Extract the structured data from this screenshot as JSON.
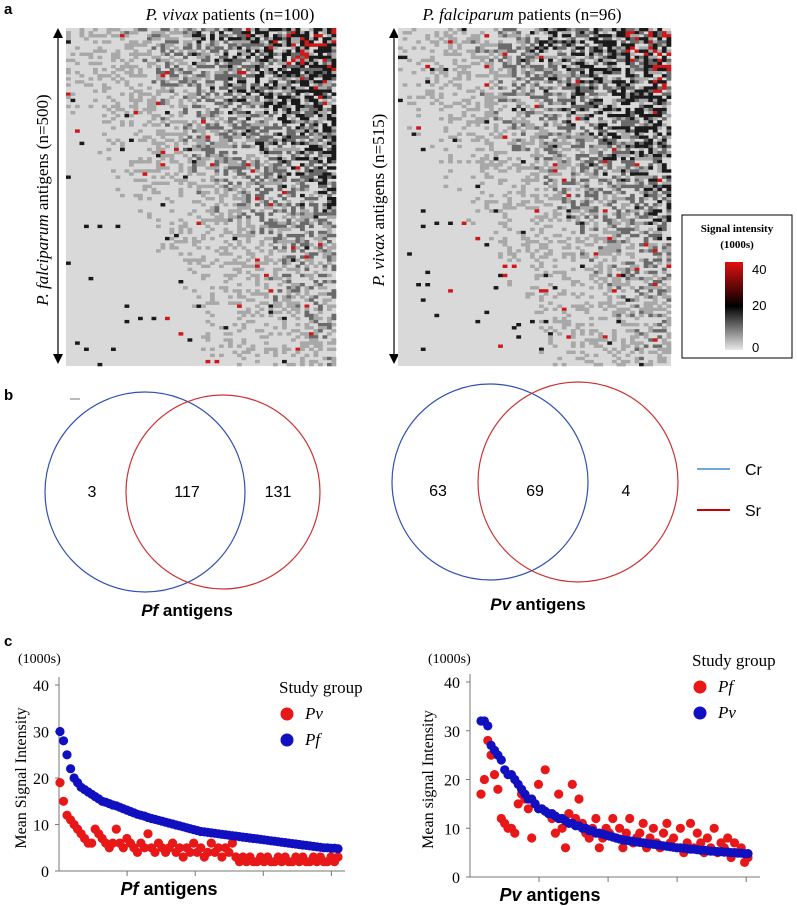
{
  "panel_a": {
    "letter": "a",
    "left": {
      "title_species": "P. vivax",
      "title_rest": " patients (n=100)",
      "ylabel_species": "P. falciparum",
      "ylabel_rest": " antigens (n=500)"
    },
    "right": {
      "title_species": "P. falciparum",
      "title_rest": " patients (n=96)",
      "ylabel_species": "P. vivax",
      "ylabel_rest": " antigens (n=515)"
    },
    "colorbar": {
      "title_line1": "Signal intensity",
      "title_line2": "(1000s)",
      "ticks": [
        "40",
        "20",
        "0"
      ],
      "colors": {
        "high": "#e01010",
        "mid": "#000000",
        "low": "#e8e8e8"
      }
    }
  },
  "panel_b": {
    "letter": "b",
    "left": {
      "only_cr": "3",
      "both": "117",
      "only_sr": "131",
      "caption_species": "Pf",
      "caption_rest": " antigens"
    },
    "right": {
      "only_cr": "63",
      "both": "69",
      "only_sr": "4",
      "caption_species": "Pv",
      "caption_rest": " antigens"
    },
    "legend": [
      {
        "label": "Cr",
        "color": "#6fa8dc"
      },
      {
        "label": "Sr",
        "color": "#cc0000"
      }
    ]
  },
  "panel_c": {
    "letter": "c"
  },
  "chart_data": [
    {
      "type": "scatter",
      "title": "",
      "unit_label": "(1000s)",
      "ylabel": "Mean Signal Intensity",
      "xlabel_species": "Pf",
      "xlabel_rest": " antigens",
      "ylim": [
        0,
        40
      ],
      "yticks": [
        "0",
        "10",
        "20",
        "30",
        "40"
      ],
      "legend_title": "Study group",
      "series": [
        {
          "name": "Pv",
          "color": "#e81818",
          "values": [
            19,
            15,
            12,
            11,
            10,
            9,
            8,
            7,
            6,
            6,
            9,
            8,
            7,
            6,
            5,
            6,
            9,
            6,
            5,
            7,
            6,
            5,
            4,
            6,
            5,
            8,
            5,
            4,
            6,
            5,
            4,
            5,
            6,
            4,
            5,
            3,
            5,
            4,
            6,
            4,
            5,
            3,
            4,
            6,
            4,
            5,
            3,
            5,
            4,
            6,
            3,
            2,
            3,
            2,
            3,
            2,
            2,
            3,
            2,
            3,
            2,
            2,
            3,
            2,
            3,
            2,
            2,
            3,
            2,
            3,
            2,
            2,
            3,
            2,
            3,
            2,
            2,
            3,
            2,
            3
          ]
        },
        {
          "name": "Pf",
          "color": "#1010c0",
          "values": [
            30,
            28,
            25,
            22,
            20,
            19,
            18,
            17.5,
            17,
            16.5,
            16,
            15.5,
            15,
            14.8,
            14.5,
            14.2,
            14,
            13.7,
            13.4,
            13.1,
            12.8,
            12.5,
            12.2,
            12,
            11.8,
            11.5,
            11.3,
            11.1,
            10.9,
            10.7,
            10.5,
            10.3,
            10.1,
            9.9,
            9.7,
            9.5,
            9.3,
            9.1,
            8.9,
            8.7,
            8.5,
            8.4,
            8.3,
            8.2,
            8.1,
            8,
            7.9,
            7.8,
            7.7,
            7.6,
            7.5,
            7.4,
            7.3,
            7.2,
            7.1,
            7,
            6.9,
            6.8,
            6.7,
            6.6,
            6.5,
            6.4,
            6.3,
            6.2,
            6.1,
            6,
            5.9,
            5.8,
            5.7,
            5.6,
            5.5,
            5.4,
            5.3,
            5.2,
            5.1,
            5,
            5,
            4.9,
            4.9,
            4.8
          ]
        }
      ]
    },
    {
      "type": "scatter",
      "title": "",
      "unit_label": "(1000s)",
      "ylabel": "Mean signal Intensity",
      "xlabel_species": "Pv",
      "xlabel_rest": " antigens",
      "ylim": [
        0,
        40
      ],
      "yticks": [
        "0",
        "10",
        "20",
        "30",
        "40"
      ],
      "legend_title": "Study group",
      "series": [
        {
          "name": "Pf",
          "color": "#e81818",
          "values": [
            17,
            20,
            28,
            25,
            21,
            18,
            12,
            11,
            10,
            10,
            9,
            15,
            17,
            16,
            14,
            8,
            15,
            19,
            14,
            22,
            13,
            12,
            9,
            17,
            10,
            6,
            13,
            19,
            12,
            16,
            11,
            9,
            8,
            10,
            12,
            6,
            8,
            10,
            9,
            12,
            8,
            10,
            6,
            9,
            12,
            7,
            8,
            9,
            11,
            6,
            8,
            10,
            7,
            6,
            9,
            11,
            7,
            8,
            6,
            10,
            5,
            7,
            11,
            6,
            9,
            7,
            5,
            8,
            6,
            10,
            5,
            7,
            6,
            8,
            4,
            7,
            5,
            6,
            3,
            4
          ]
        },
        {
          "name": "Pv",
          "color": "#1010c0",
          "values": [
            32,
            32,
            31,
            27,
            26,
            25,
            24,
            22,
            21,
            21,
            20,
            19,
            18,
            17,
            16,
            16,
            15,
            14,
            14,
            13.5,
            13,
            13,
            12.5,
            12,
            12,
            11.5,
            11,
            11,
            10.5,
            10.5,
            10,
            10,
            9.5,
            9.5,
            9,
            9,
            8.8,
            8.6,
            8.4,
            8.2,
            8,
            7.8,
            7.6,
            7.5,
            7.4,
            7.3,
            7.2,
            7.1,
            7,
            6.9,
            6.8,
            6.7,
            6.6,
            6.5,
            6.4,
            6.3,
            6.2,
            6.1,
            6,
            6,
            5.9,
            5.8,
            5.7,
            5.7,
            5.6,
            5.5,
            5.5,
            5.4,
            5.3,
            5.3,
            5.2,
            5.2,
            5.1,
            5.1,
            5,
            5,
            4.9,
            4.9,
            4.8,
            4.8
          ]
        }
      ]
    }
  ]
}
